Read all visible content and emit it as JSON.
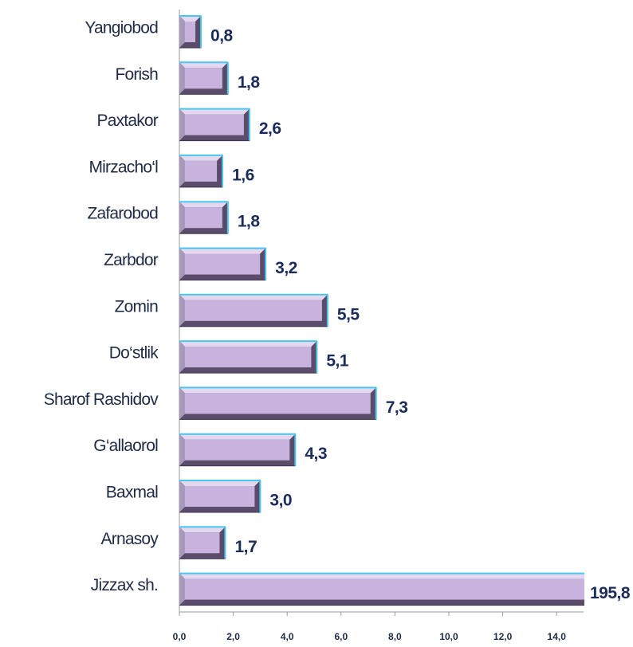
{
  "chart_data": {
    "type": "barh",
    "categories": [
      "Yangiobod",
      "Forish",
      "Paxtakor",
      "Mirzacho‘l",
      "Zafarobod",
      "Zarbdor",
      "Zomin",
      "Do‘stlik",
      "Sharof Rashidov",
      "G‘allaorol",
      "Baxmal",
      "Arnasoy",
      "Jizzax sh."
    ],
    "values": [
      0.8,
      1.8,
      2.6,
      1.6,
      1.8,
      3.2,
      5.5,
      5.1,
      7.3,
      4.3,
      3.0,
      1.7,
      195.8
    ],
    "value_labels": [
      "0,8",
      "1,8",
      "2,6",
      "1,6",
      "1,8",
      "3,2",
      "5,5",
      "5,1",
      "7,3",
      "4,3",
      "3,0",
      "1,7",
      "195,8"
    ],
    "color": "#c7b3dd",
    "xlim": [
      0,
      15
    ],
    "xticks": [
      {
        "value": 0,
        "label": "0,0"
      },
      {
        "value": 2,
        "label": "2,0"
      },
      {
        "value": 4,
        "label": "4,0"
      },
      {
        "value": 6,
        "label": "6,0"
      },
      {
        "value": 8,
        "label": "8,0"
      },
      {
        "value": 10,
        "label": "10,0"
      },
      {
        "value": 12,
        "label": "12,0"
      },
      {
        "value": 14,
        "label": "14,0"
      }
    ],
    "grid": false
  }
}
